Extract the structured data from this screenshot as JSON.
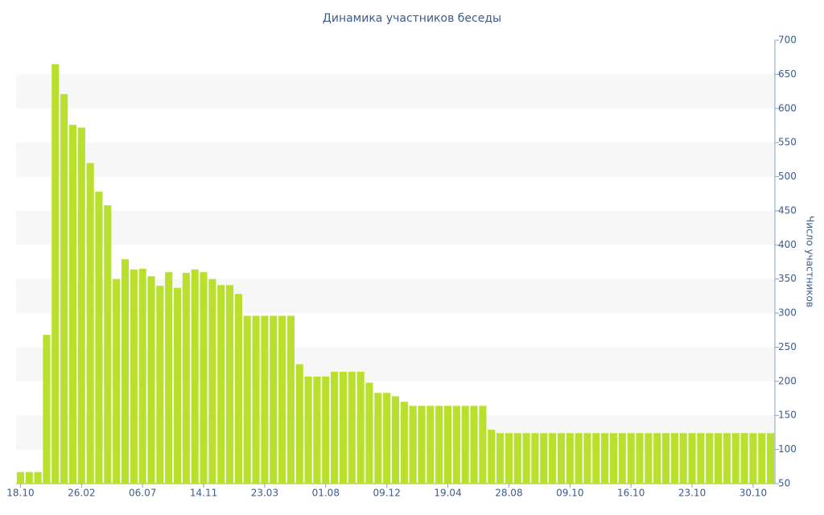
{
  "chart_data": {
    "type": "bar",
    "title": "Динамика участников беседы",
    "y_label": "Число участников",
    "categories": [
      "18.10",
      null,
      null,
      null,
      null,
      null,
      null,
      "26.02",
      null,
      null,
      null,
      null,
      null,
      null,
      "06.07",
      null,
      null,
      null,
      null,
      null,
      null,
      "14.11",
      null,
      null,
      null,
      null,
      null,
      null,
      "23.03",
      null,
      null,
      null,
      null,
      null,
      null,
      "01.08",
      null,
      null,
      null,
      null,
      null,
      null,
      "09.12",
      null,
      null,
      null,
      null,
      null,
      null,
      "19.04",
      null,
      null,
      null,
      null,
      null,
      null,
      "28.08",
      null,
      null,
      null,
      null,
      null,
      null,
      "09.10",
      null,
      null,
      null,
      null,
      null,
      null,
      "16.10",
      null,
      null,
      null,
      null,
      null,
      null,
      "23.10",
      null,
      null,
      null,
      null,
      null,
      null,
      "30.10",
      null,
      null
    ],
    "values": [
      67,
      67,
      67,
      268,
      665,
      621,
      576,
      572,
      520,
      478,
      458,
      350,
      379,
      364,
      365,
      354,
      340,
      360,
      337,
      359,
      364,
      360,
      350,
      341,
      341,
      328,
      296,
      296,
      296,
      296,
      296,
      296,
      225,
      207,
      207,
      207,
      214,
      214,
      214,
      214,
      198,
      183,
      183,
      178,
      170,
      164,
      164,
      164,
      164,
      164,
      164,
      164,
      164,
      164,
      129,
      124,
      124,
      124,
      124,
      124,
      124,
      124,
      124,
      124,
      124,
      124,
      124,
      124,
      124,
      124,
      124,
      124,
      124,
      124,
      124,
      124,
      124,
      124,
      124,
      124,
      124,
      124,
      124,
      124,
      124,
      124,
      124
    ],
    "color": "#b8e02c",
    "ylim": [
      50,
      700
    ],
    "yticks": [
      50,
      100,
      150,
      200,
      250,
      300,
      350,
      400,
      450,
      500,
      550,
      600,
      650,
      700
    ],
    "grid": "bands",
    "y_axis_side": "right"
  }
}
